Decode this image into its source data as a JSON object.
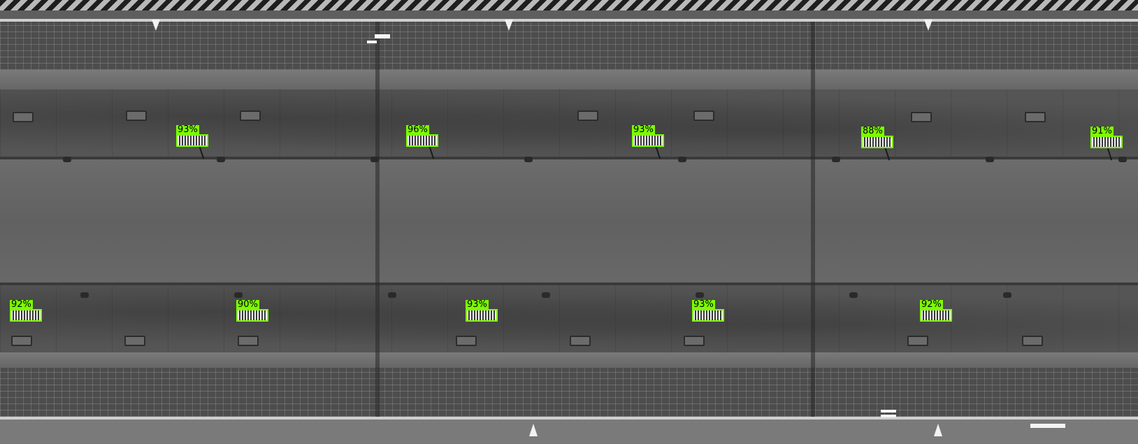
{
  "detections": [
    {
      "label": "93%"
    },
    {
      "label": "96%"
    },
    {
      "label": "93%"
    },
    {
      "label": "88%"
    },
    {
      "label": "91%"
    },
    {
      "label": "92%"
    },
    {
      "label": "90%"
    },
    {
      "label": "93%"
    },
    {
      "label": "93%"
    },
    {
      "label": "92%"
    }
  ],
  "colors": {
    "detection_box": "#7cfc00",
    "label_text": "#000000"
  },
  "image_style": "grayscale aerial inspection image of a concrete structure"
}
